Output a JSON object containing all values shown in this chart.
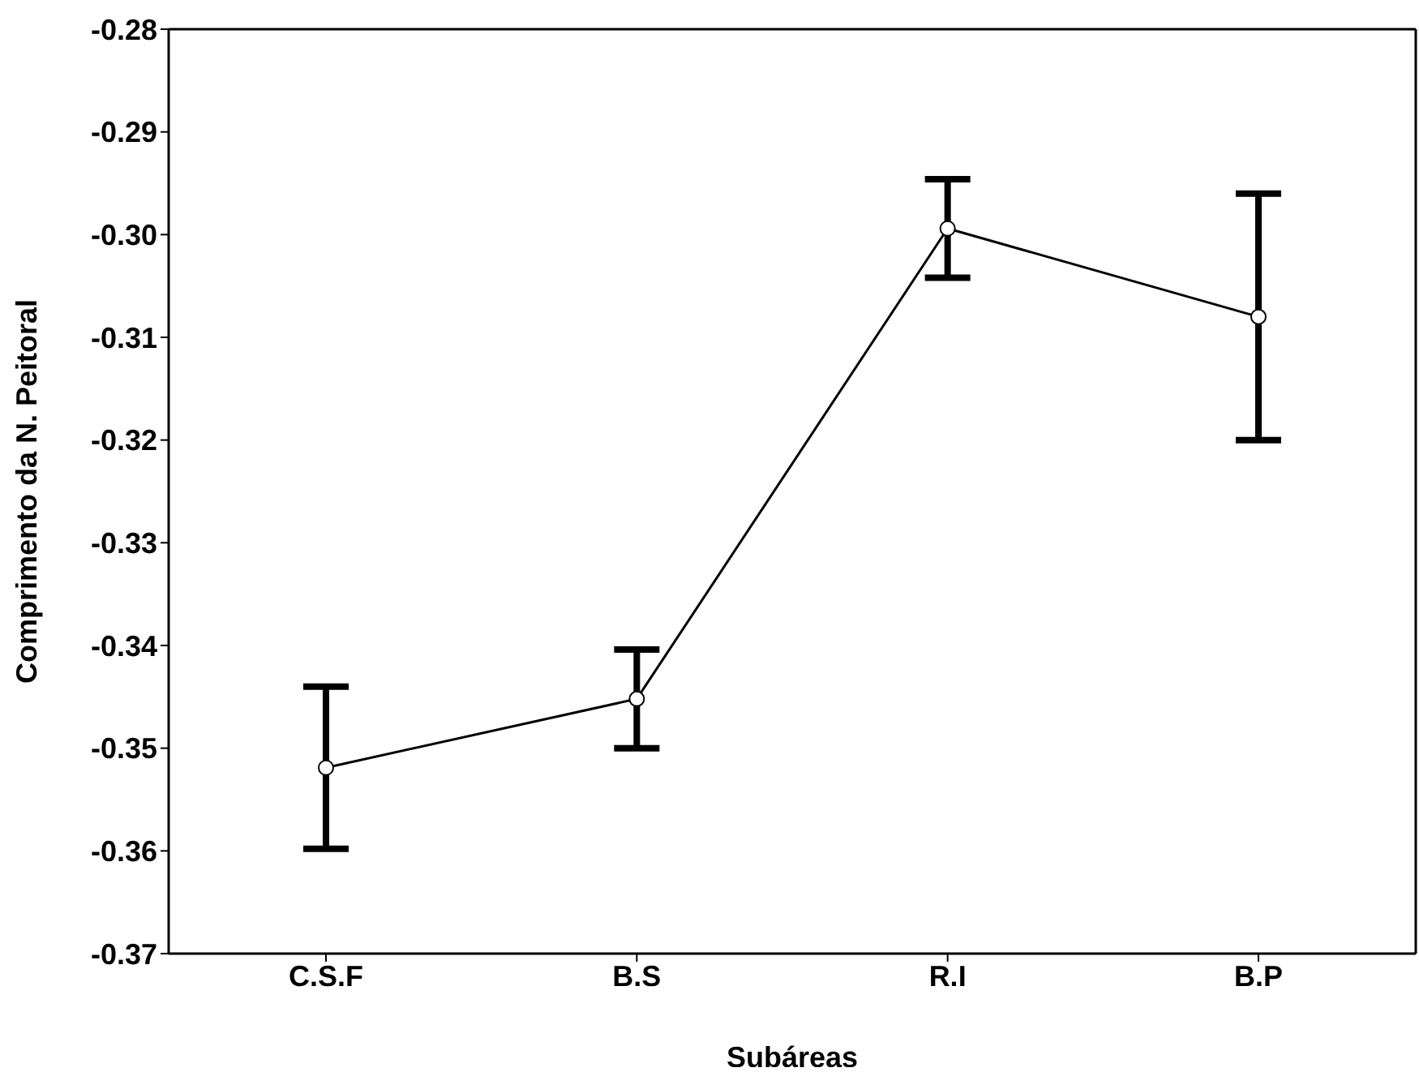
{
  "chart_data": {
    "type": "line",
    "xlabel": "Subáreas",
    "ylabel": "Comprimento da N. Peitoral",
    "categories": [
      "C.S.F",
      "B.S",
      "R.I",
      "B.P"
    ],
    "values": [
      -0.3519,
      -0.3452,
      -0.2994,
      -0.308
    ],
    "errors": [
      0.0079,
      0.0048,
      0.0048,
      0.012
    ],
    "color": "#000000",
    "marker": "circle",
    "line_style": "solid",
    "grid": false,
    "legend": false,
    "ylim": [
      -0.37,
      -0.28
    ],
    "yticks": [
      -0.37,
      -0.36,
      -0.35,
      -0.34,
      -0.33,
      -0.32,
      -0.31,
      {
        "value": -0.3,
        "label": "-0.30"
      },
      -0.29,
      -0.28
    ]
  }
}
